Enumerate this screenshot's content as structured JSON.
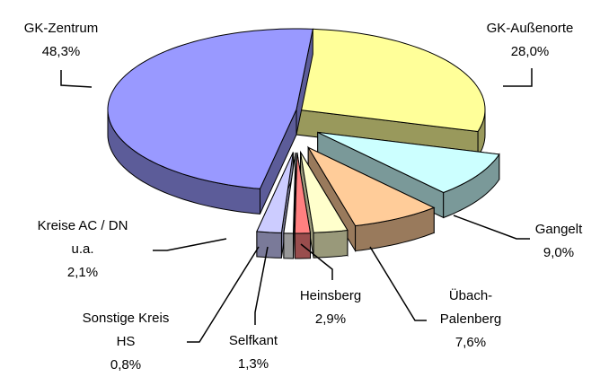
{
  "chart_data": {
    "type": "pie3d",
    "categories": [
      "GK-Außenorte",
      "Gangelt",
      "Übach-Palenberg",
      "Heinsberg",
      "Selfkant",
      "Sonstige Kreis HS",
      "Kreise AC / DN u.a.",
      "GK-Zentrum"
    ],
    "values": [
      28.0,
      9.0,
      7.6,
      2.9,
      1.3,
      0.8,
      2.1,
      48.3
    ],
    "value_labels": [
      "28,0%",
      "9,0%",
      "7,6%",
      "2,9%",
      "1,3%",
      "0,8%",
      "2,1%",
      "48,3%"
    ],
    "colors": [
      "#ffff99",
      "#ccffff",
      "#ffcc99",
      "#ffffcc",
      "#ff8080",
      "#ffffff",
      "#ccccff",
      "#9999ff"
    ]
  }
}
